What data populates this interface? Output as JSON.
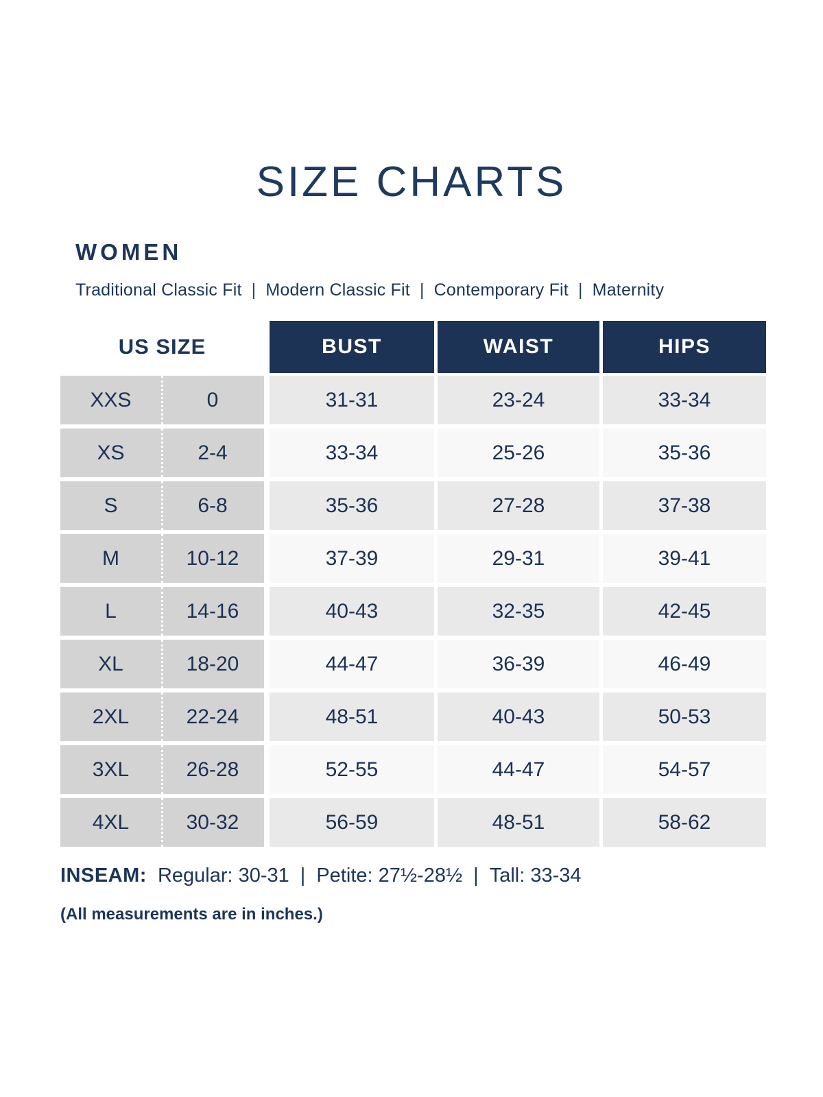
{
  "page": {
    "title": "SIZE CHARTS",
    "section": "WOMEN",
    "fit_types": [
      "Traditional Classic Fit",
      "Modern Classic Fit",
      "Contemporary Fit",
      "Maternity"
    ],
    "separator": "|"
  },
  "table": {
    "us_size_header": "US SIZE",
    "measure_headers": [
      "BUST",
      "WAIST",
      "HIPS"
    ],
    "rows": [
      {
        "size": "XXS",
        "us": "0",
        "bust": "31-31",
        "waist": "23-24",
        "hips": "33-34"
      },
      {
        "size": "XS",
        "us": "2-4",
        "bust": "33-34",
        "waist": "25-26",
        "hips": "35-36"
      },
      {
        "size": "S",
        "us": "6-8",
        "bust": "35-36",
        "waist": "27-28",
        "hips": "37-38"
      },
      {
        "size": "M",
        "us": "10-12",
        "bust": "37-39",
        "waist": "29-31",
        "hips": "39-41"
      },
      {
        "size": "L",
        "us": "14-16",
        "bust": "40-43",
        "waist": "32-35",
        "hips": "42-45"
      },
      {
        "size": "XL",
        "us": "18-20",
        "bust": "44-47",
        "waist": "36-39",
        "hips": "46-49"
      },
      {
        "size": "2XL",
        "us": "22-24",
        "bust": "48-51",
        "waist": "40-43",
        "hips": "50-53"
      },
      {
        "size": "3XL",
        "us": "26-28",
        "bust": "52-55",
        "waist": "44-47",
        "hips": "54-57"
      },
      {
        "size": "4XL",
        "us": "30-32",
        "bust": "56-59",
        "waist": "48-51",
        "hips": "58-62"
      }
    ]
  },
  "inseam": {
    "label": "INSEAM:",
    "segments": [
      {
        "name": "Regular:",
        "value": "30-31"
      },
      {
        "name": "Petite:",
        "value": "27½-28½"
      },
      {
        "name": "Tall:",
        "value": "33-34"
      }
    ],
    "separator": "|"
  },
  "footnote": "(All measurements are in inches.)",
  "colors": {
    "navy_text": "#1d3557",
    "header_background": "#1d3355",
    "header_text": "#ffffff",
    "us_size_background": "#d3d3d3",
    "row_shaded": "#e9e9e9",
    "row_light": "#f8f8f8",
    "page_background": "#ffffff"
  }
}
